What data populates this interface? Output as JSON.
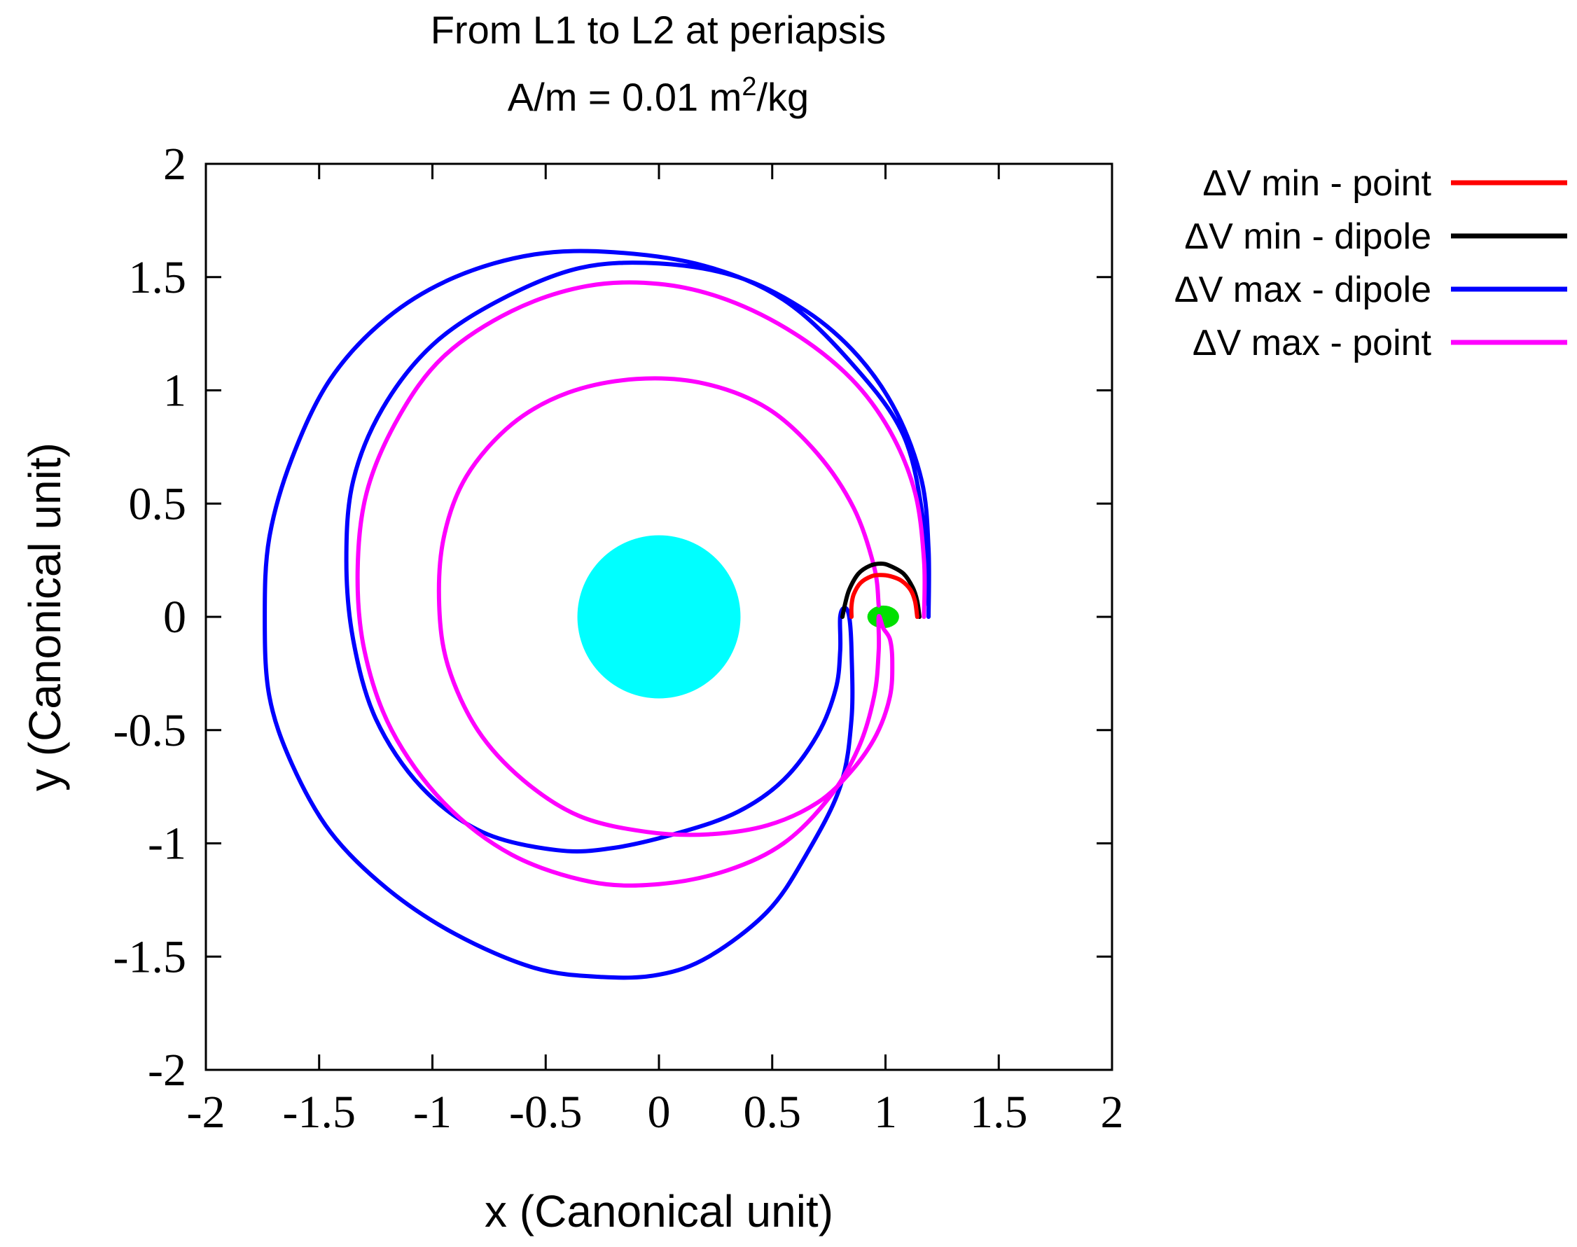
{
  "chart_data": {
    "type": "line",
    "title_line1": "From L1 to L2 at periapsis",
    "title_line2_base": "A/m = 0.01 m",
    "title_line2_sup": "2",
    "title_line2_tail": "/kg",
    "xlabel": "x (Canonical unit)",
    "ylabel": "y (Canonical unit)",
    "xlim": [
      -2,
      2
    ],
    "ylim": [
      -2,
      2
    ],
    "xticks": [
      "-2",
      "-1.5",
      "-1",
      "-0.5",
      "0",
      "0.5",
      "1",
      "1.5",
      "2"
    ],
    "yticks": [
      "2",
      "1.5",
      "1",
      "0.5",
      "0",
      "-0.5",
      "-1",
      "-1.5",
      "-2"
    ],
    "legend_position": "top-right-outside",
    "bodies": [
      {
        "name": "primary",
        "cx": 0.0,
        "cy": 0.0,
        "r": 0.36,
        "color": "#00ffff"
      },
      {
        "name": "secondary",
        "cx": 0.99,
        "cy": 0.0,
        "rx": 0.07,
        "ry": 0.05,
        "color": "#00e000"
      }
    ],
    "series": [
      {
        "name": "ΔV min - point",
        "color": "#ff0000",
        "points": [
          [
            1.14,
            0.0
          ],
          [
            1.13,
            0.07
          ],
          [
            1.11,
            0.12
          ],
          [
            1.07,
            0.16
          ],
          [
            1.02,
            0.18
          ],
          [
            0.98,
            0.185
          ],
          [
            0.94,
            0.18
          ],
          [
            0.89,
            0.15
          ],
          [
            0.86,
            0.1
          ],
          [
            0.85,
            0.05
          ],
          [
            0.85,
            0.0
          ]
        ]
      },
      {
        "name": "ΔV min - dipole",
        "color": "#000000",
        "points": [
          [
            1.15,
            0.0
          ],
          [
            1.14,
            0.07
          ],
          [
            1.12,
            0.13
          ],
          [
            1.08,
            0.19
          ],
          [
            1.02,
            0.225
          ],
          [
            0.98,
            0.235
          ],
          [
            0.93,
            0.225
          ],
          [
            0.88,
            0.19
          ],
          [
            0.84,
            0.12
          ],
          [
            0.82,
            0.05
          ],
          [
            0.81,
            0.0
          ]
        ]
      },
      {
        "name": "ΔV max - dipole",
        "color": "#0000ff",
        "points": [
          [
            1.19,
            0.0
          ],
          [
            1.19,
            0.3
          ],
          [
            1.16,
            0.6
          ],
          [
            1.05,
            0.9
          ],
          [
            0.88,
            1.15
          ],
          [
            0.65,
            1.35
          ],
          [
            0.35,
            1.5
          ],
          [
            0.0,
            1.56
          ],
          [
            -0.35,
            1.54
          ],
          [
            -0.7,
            1.4
          ],
          [
            -1.0,
            1.2
          ],
          [
            -1.22,
            0.92
          ],
          [
            -1.35,
            0.6
          ],
          [
            -1.38,
            0.25
          ],
          [
            -1.35,
            -0.1
          ],
          [
            -1.25,
            -0.45
          ],
          [
            -1.05,
            -0.75
          ],
          [
            -0.78,
            -0.95
          ],
          [
            -0.45,
            -1.03
          ],
          [
            -0.2,
            -1.02
          ],
          [
            0.1,
            -0.95
          ],
          [
            0.35,
            -0.86
          ],
          [
            0.55,
            -0.72
          ],
          [
            0.7,
            -0.52
          ],
          [
            0.78,
            -0.32
          ],
          [
            0.8,
            -0.15
          ],
          [
            0.8,
            0.0
          ],
          [
            0.82,
            0.04
          ],
          [
            0.84,
            0.0
          ],
          [
            0.85,
            -0.15
          ],
          [
            0.85,
            -0.45
          ],
          [
            0.8,
            -0.75
          ],
          [
            0.65,
            -1.05
          ],
          [
            0.48,
            -1.3
          ],
          [
            0.22,
            -1.5
          ],
          [
            0.0,
            -1.58
          ],
          [
            -0.25,
            -1.59
          ],
          [
            -0.55,
            -1.55
          ],
          [
            -0.9,
            -1.4
          ],
          [
            -1.2,
            -1.2
          ],
          [
            -1.45,
            -0.95
          ],
          [
            -1.62,
            -0.65
          ],
          [
            -1.72,
            -0.35
          ],
          [
            -1.74,
            0.0
          ],
          [
            -1.72,
            0.35
          ],
          [
            -1.62,
            0.7
          ],
          [
            -1.45,
            1.05
          ],
          [
            -1.2,
            1.32
          ],
          [
            -0.9,
            1.5
          ],
          [
            -0.55,
            1.6
          ],
          [
            -0.2,
            1.61
          ],
          [
            0.2,
            1.55
          ],
          [
            0.55,
            1.4
          ],
          [
            0.85,
            1.12
          ],
          [
            1.08,
            0.8
          ],
          [
            1.17,
            0.4
          ],
          [
            1.19,
            0.05
          ]
        ]
      },
      {
        "name": "ΔV max - point",
        "color": "#ff00ff",
        "points": [
          [
            1.17,
            0.0
          ],
          [
            1.17,
            0.25
          ],
          [
            1.13,
            0.55
          ],
          [
            1.02,
            0.82
          ],
          [
            0.85,
            1.05
          ],
          [
            0.6,
            1.25
          ],
          [
            0.3,
            1.4
          ],
          [
            0.0,
            1.47
          ],
          [
            -0.32,
            1.46
          ],
          [
            -0.65,
            1.35
          ],
          [
            -0.95,
            1.15
          ],
          [
            -1.15,
            0.88
          ],
          [
            -1.29,
            0.55
          ],
          [
            -1.33,
            0.2
          ],
          [
            -1.3,
            -0.15
          ],
          [
            -1.18,
            -0.5
          ],
          [
            -0.95,
            -0.82
          ],
          [
            -0.65,
            -1.05
          ],
          [
            -0.3,
            -1.17
          ],
          [
            0.0,
            -1.18
          ],
          [
            0.3,
            -1.12
          ],
          [
            0.55,
            -1.0
          ],
          [
            0.75,
            -0.8
          ],
          [
            0.88,
            -0.58
          ],
          [
            0.95,
            -0.35
          ],
          [
            0.97,
            -0.15
          ],
          [
            0.97,
            0.0
          ],
          [
            0.99,
            -0.05
          ],
          [
            1.02,
            -0.1
          ],
          [
            1.03,
            -0.2
          ],
          [
            1.02,
            -0.35
          ],
          [
            0.96,
            -0.52
          ],
          [
            0.85,
            -0.68
          ],
          [
            0.7,
            -0.82
          ],
          [
            0.48,
            -0.92
          ],
          [
            0.22,
            -0.96
          ],
          [
            -0.05,
            -0.95
          ],
          [
            -0.35,
            -0.88
          ],
          [
            -0.6,
            -0.72
          ],
          [
            -0.8,
            -0.5
          ],
          [
            -0.93,
            -0.22
          ],
          [
            -0.97,
            0.05
          ],
          [
            -0.95,
            0.35
          ],
          [
            -0.85,
            0.62
          ],
          [
            -0.65,
            0.85
          ],
          [
            -0.4,
            0.99
          ],
          [
            -0.1,
            1.05
          ],
          [
            0.2,
            1.03
          ],
          [
            0.48,
            0.92
          ],
          [
            0.7,
            0.72
          ],
          [
            0.86,
            0.48
          ],
          [
            0.95,
            0.22
          ],
          [
            0.97,
            0.05
          ]
        ]
      }
    ]
  }
}
